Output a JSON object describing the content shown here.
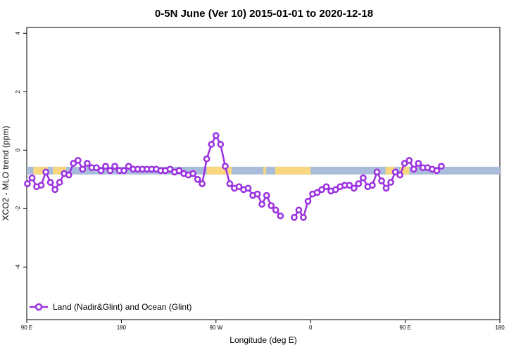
{
  "chart_data": {
    "type": "line",
    "title": "0-5N June (Ver 10)   2015-01-01 to 2020-12-18",
    "xlabel": "Longitude (deg E)",
    "ylabel": "XCO2 - MLO trend (ppm)",
    "xlim": [
      -180,
      180
    ],
    "ylim": [
      -5.8,
      4.2
    ],
    "x_ticks": [
      {
        "value": -180,
        "label": "90 E"
      },
      {
        "value": -108,
        "label": "180"
      },
      {
        "value": -36,
        "label": "90 W"
      },
      {
        "value": 36,
        "label": "0"
      },
      {
        "value": 108,
        "label": "90 E"
      },
      {
        "value": 180,
        "label": "180"
      }
    ],
    "y_ticks": [
      {
        "value": 4,
        "label": "4"
      },
      {
        "value": 2,
        "label": "2"
      },
      {
        "value": 0,
        "label": "0"
      },
      {
        "value": -2,
        "label": "-2"
      },
      {
        "value": -4,
        "label": "-4"
      }
    ],
    "grid": false,
    "legend_position": "bottom-left",
    "series": [
      {
        "name": "Land (Nadir&Glint) and Ocean (Glint)",
        "color": "#9b30e0",
        "segments": [
          [
            [
              -179.5,
              -1.15
            ],
            [
              -176,
              -0.95
            ],
            [
              -172.5,
              -1.25
            ],
            [
              -169,
              -1.2
            ],
            [
              -165.5,
              -0.75
            ],
            [
              -162,
              -1.1
            ],
            [
              -158.5,
              -1.35
            ],
            [
              -155,
              -1.1
            ],
            [
              -151.5,
              -0.8
            ],
            [
              -148,
              -0.85
            ],
            [
              -144.5,
              -0.45
            ],
            [
              -141,
              -0.35
            ],
            [
              -137.5,
              -0.65
            ],
            [
              -134,
              -0.45
            ],
            [
              -130.5,
              -0.6
            ],
            [
              -127,
              -0.6
            ],
            [
              -123.5,
              -0.7
            ],
            [
              -120,
              -0.55
            ],
            [
              -116.5,
              -0.7
            ],
            [
              -113,
              -0.55
            ],
            [
              -109.5,
              -0.7
            ],
            [
              -106,
              -0.7
            ],
            [
              -102.5,
              -0.55
            ],
            [
              -99,
              -0.65
            ],
            [
              -95.5,
              -0.65
            ],
            [
              -92,
              -0.65
            ],
            [
              -88.5,
              -0.65
            ],
            [
              -85,
              -0.65
            ],
            [
              -81.5,
              -0.65
            ],
            [
              -78,
              -0.7
            ],
            [
              -74.5,
              -0.7
            ],
            [
              -71,
              -0.65
            ],
            [
              -67.5,
              -0.75
            ],
            [
              -64,
              -0.7
            ],
            [
              -60.5,
              -0.8
            ],
            [
              -57,
              -0.85
            ],
            [
              -53.5,
              -0.8
            ],
            [
              -50,
              -1.0
            ],
            [
              -46.5,
              -1.15
            ],
            [
              -43,
              -0.3
            ],
            [
              -39.5,
              0.2
            ],
            [
              -36,
              0.5
            ],
            [
              -32.5,
              0.2
            ],
            [
              -29,
              -0.55
            ],
            [
              -25.5,
              -1.15
            ],
            [
              -22,
              -1.3
            ],
            [
              -18.5,
              -1.25
            ],
            [
              -15,
              -1.35
            ],
            [
              -11.5,
              -1.3
            ],
            [
              -8,
              -1.55
            ],
            [
              -4.5,
              -1.5
            ],
            [
              -1,
              -1.85
            ],
            [
              2.5,
              -1.55
            ],
            [
              6,
              -1.9
            ],
            [
              9.5,
              -2.05
            ],
            [
              13,
              -2.25
            ]
          ],
          [
            [
              23.5,
              -2.3
            ],
            [
              27,
              -2.05
            ],
            [
              30.5,
              -2.3
            ],
            [
              34,
              -1.75
            ],
            [
              37.5,
              -1.5
            ],
            [
              41,
              -1.45
            ],
            [
              44.5,
              -1.35
            ],
            [
              48,
              -1.25
            ],
            [
              51.5,
              -1.4
            ],
            [
              55,
              -1.35
            ],
            [
              58.5,
              -1.25
            ],
            [
              62,
              -1.2
            ],
            [
              65.5,
              -1.2
            ],
            [
              69,
              -1.3
            ],
            [
              72.5,
              -1.15
            ],
            [
              76,
              -0.95
            ],
            [
              79.5,
              -1.25
            ],
            [
              83,
              -1.2
            ],
            [
              86.5,
              -0.75
            ],
            [
              90,
              -1.05
            ],
            [
              93.5,
              -1.3
            ],
            [
              97,
              -1.1
            ],
            [
              100.5,
              -0.75
            ],
            [
              104,
              -0.85
            ],
            [
              107.5,
              -0.45
            ],
            [
              111,
              -0.35
            ],
            [
              114.5,
              -0.65
            ],
            [
              118,
              -0.45
            ],
            [
              121.5,
              -0.6
            ],
            [
              125,
              -0.6
            ],
            [
              128.5,
              -0.65
            ],
            [
              132,
              -0.7
            ],
            [
              135.5,
              -0.55
            ]
          ]
        ]
      }
    ],
    "surface_band": {
      "y_center": -0.7,
      "ocean_color": "#a9bddb",
      "land_color": "#f9d77e",
      "land_ranges": [
        [
          -175,
          -164
        ],
        [
          -160,
          -150
        ],
        [
          -43,
          -24
        ],
        [
          0,
          2
        ],
        [
          9,
          36
        ],
        [
          93,
          100
        ],
        [
          104,
          111
        ]
      ]
    }
  }
}
